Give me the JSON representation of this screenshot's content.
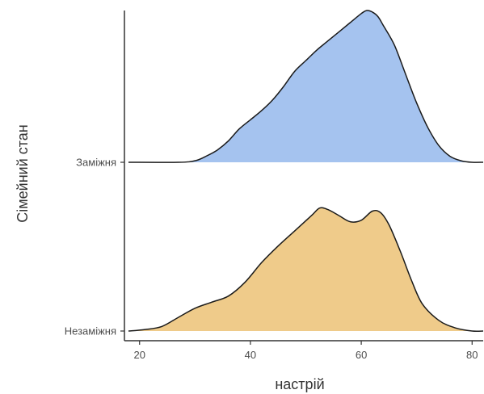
{
  "chart_data": {
    "type": "ridgeline",
    "xlabel": "настрій",
    "ylabel": "Сімейний стан",
    "xlim": [
      18,
      82
    ],
    "x_ticks": [
      20,
      40,
      60,
      80
    ],
    "grid": false,
    "series": [
      {
        "name": "Незаміжня",
        "color": "#efcb8a",
        "density": [
          [
            18,
            0.0
          ],
          [
            21,
            0.01
          ],
          [
            24,
            0.03
          ],
          [
            27,
            0.09
          ],
          [
            30,
            0.15
          ],
          [
            33,
            0.19
          ],
          [
            36,
            0.23
          ],
          [
            39,
            0.32
          ],
          [
            42,
            0.45
          ],
          [
            45,
            0.56
          ],
          [
            48,
            0.66
          ],
          [
            51,
            0.76
          ],
          [
            52.5,
            0.81
          ],
          [
            54,
            0.8
          ],
          [
            56,
            0.76
          ],
          [
            58,
            0.72
          ],
          [
            60,
            0.73
          ],
          [
            62,
            0.79
          ],
          [
            63.5,
            0.78
          ],
          [
            65,
            0.7
          ],
          [
            67,
            0.53
          ],
          [
            69,
            0.34
          ],
          [
            71,
            0.18
          ],
          [
            74,
            0.07
          ],
          [
            77,
            0.02
          ],
          [
            80,
            0.0
          ],
          [
            82,
            0.0
          ]
        ]
      },
      {
        "name": "Заміжня",
        "color": "#a5c3ef",
        "density": [
          [
            18,
            0.0
          ],
          [
            27,
            0.0
          ],
          [
            30,
            0.01
          ],
          [
            32,
            0.04
          ],
          [
            34,
            0.08
          ],
          [
            36,
            0.14
          ],
          [
            38,
            0.22
          ],
          [
            40,
            0.28
          ],
          [
            42,
            0.34
          ],
          [
            44,
            0.41
          ],
          [
            46,
            0.5
          ],
          [
            48,
            0.6
          ],
          [
            50,
            0.67
          ],
          [
            52,
            0.74
          ],
          [
            54,
            0.8
          ],
          [
            56,
            0.86
          ],
          [
            58,
            0.92
          ],
          [
            60,
            0.98
          ],
          [
            61,
            1.0
          ],
          [
            62,
            0.99
          ],
          [
            63,
            0.96
          ],
          [
            64,
            0.9
          ],
          [
            66,
            0.77
          ],
          [
            68,
            0.58
          ],
          [
            70,
            0.39
          ],
          [
            72,
            0.23
          ],
          [
            74,
            0.11
          ],
          [
            76,
            0.04
          ],
          [
            78,
            0.01
          ],
          [
            80,
            0.0
          ],
          [
            82,
            0.0
          ]
        ]
      }
    ]
  }
}
